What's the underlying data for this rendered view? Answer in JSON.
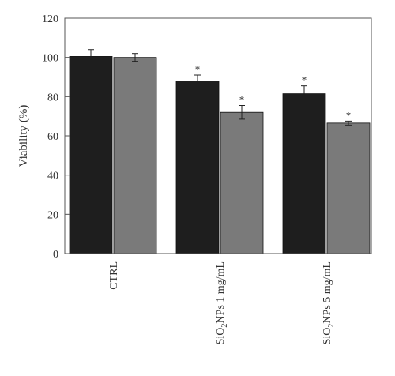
{
  "chart_data": {
    "type": "bar",
    "ylabel": "Viability (%)",
    "xlabel": "",
    "ylim": [
      0,
      120
    ],
    "yticks": [
      0,
      20,
      40,
      60,
      80,
      100,
      120
    ],
    "grid": false,
    "categories": [
      {
        "label": "CTRL"
      },
      {
        "label_prefix": "SiO",
        "label_sub": "2",
        "label_suffix": "NPs 1 mg/mL"
      },
      {
        "label_prefix": "SiO",
        "label_sub": "2",
        "label_suffix": "NPs 5 mg/mL"
      }
    ],
    "series": [
      {
        "color": "#1e1e1e",
        "values": [
          100.5,
          88,
          81.5
        ],
        "errors": [
          3.5,
          3.0,
          4.0
        ],
        "markers": [
          "",
          "*",
          "*"
        ]
      },
      {
        "color": "#7a7a7a",
        "values": [
          100,
          72,
          66.5
        ],
        "errors": [
          2.0,
          3.5,
          1.0
        ],
        "markers": [
          "",
          "*",
          "*"
        ]
      }
    ]
  }
}
